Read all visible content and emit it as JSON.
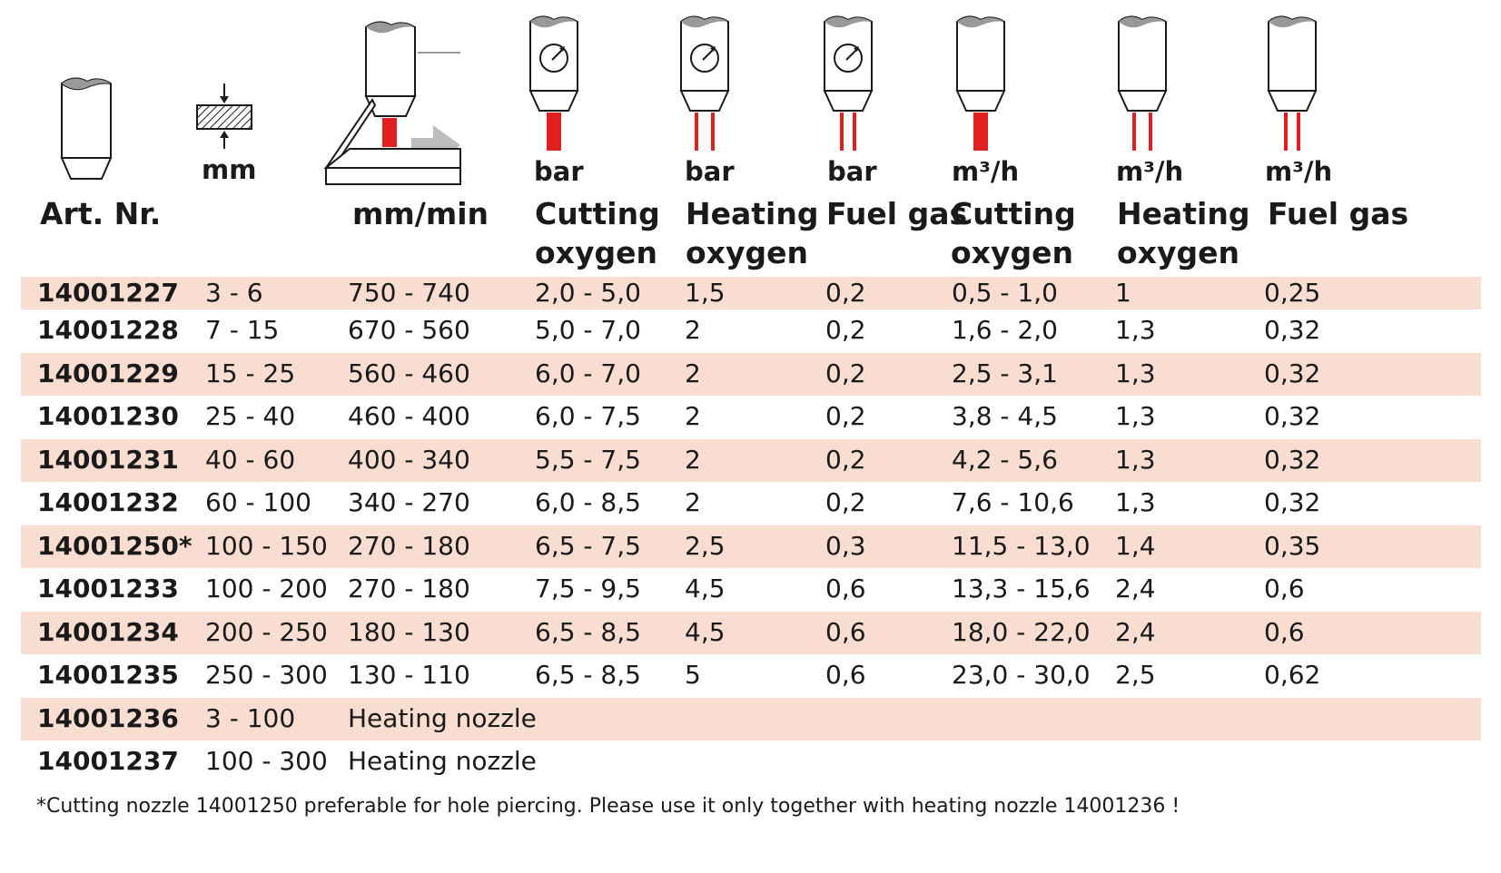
{
  "header": {
    "art_nr": "Art. Nr.",
    "thickness_unit": "mm",
    "speed_unit": "mm/min",
    "col4_unit": "bar",
    "col4_label": [
      "Cutting",
      "oxygen"
    ],
    "col5_unit": "bar",
    "col5_label": [
      "Heating",
      "oxygen"
    ],
    "col6_unit": "bar",
    "col6_label": [
      "Fuel gas"
    ],
    "col7_unit": "m³/h",
    "col7_label": [
      "Cutting",
      "oxygen"
    ],
    "col8_unit": "m³/h",
    "col8_label": [
      "Heating",
      "oxygen"
    ],
    "col9_unit": "m³/h",
    "col9_label": [
      "Fuel gas"
    ]
  },
  "icons": [
    "nozzle-icon",
    "thickness-icon",
    "cutting-machine-icon",
    "gauge-cutting-oxygen-icon",
    "gauge-heating-oxygen-icon",
    "gauge-fuel-gas-icon",
    "flow-cutting-oxygen-icon",
    "flow-heating-oxygen-icon",
    "flow-fuel-gas-icon"
  ],
  "colors": {
    "row_shade": "#f9ddd0",
    "flame_red": "#e0201e"
  },
  "rows": [
    [
      "14001227",
      "3 - 6",
      "750 - 740",
      "2,0 - 5,0",
      "1,5",
      "0,2",
      "0,5 - 1,0",
      "1",
      "0,25"
    ],
    [
      "14001228",
      "7 - 15",
      "670 - 560",
      "5,0 - 7,0",
      "2",
      "0,2",
      "1,6 - 2,0",
      "1,3",
      "0,32"
    ],
    [
      "14001229",
      "15 - 25",
      "560 - 460",
      "6,0 - 7,0",
      "2",
      "0,2",
      "2,5 - 3,1",
      "1,3",
      "0,32"
    ],
    [
      "14001230",
      "25 - 40",
      "460 - 400",
      "6,0 - 7,5",
      "2",
      "0,2",
      "3,8 - 4,5",
      "1,3",
      "0,32"
    ],
    [
      "14001231",
      "40 - 60",
      "400 - 340",
      "5,5 - 7,5",
      "2",
      "0,2",
      "4,2 - 5,6",
      "1,3",
      "0,32"
    ],
    [
      "14001232",
      "60 - 100",
      "340 - 270",
      "6,0 - 8,5",
      "2",
      "0,2",
      "7,6 - 10,6",
      "1,3",
      "0,32"
    ],
    [
      "14001250*",
      "100 - 150",
      "270 - 180",
      "6,5 - 7,5",
      "2,5",
      "0,3",
      "11,5 - 13,0",
      "1,4",
      "0,35"
    ],
    [
      "14001233",
      "100 - 200",
      "270 - 180",
      "7,5 - 9,5",
      "4,5",
      "0,6",
      "13,3 - 15,6",
      "2,4",
      "0,6"
    ],
    [
      "14001234",
      "200 - 250",
      "180 - 130",
      "6,5 - 8,5",
      "4,5",
      "0,6",
      "18,0 - 22,0",
      "2,4",
      "0,6"
    ],
    [
      "14001235",
      "250 - 300",
      "130 - 110",
      "6,5 - 8,5",
      "5",
      "0,6",
      "23,0 - 30,0",
      "2,5",
      "0,62"
    ],
    [
      "14001236",
      "3 - 100",
      "Heating nozzle",
      "",
      "",
      "",
      "",
      "",
      ""
    ],
    [
      "14001237",
      "100 - 300",
      "Heating nozzle",
      "",
      "",
      "",
      "",
      "",
      ""
    ]
  ],
  "footnote": "*Cutting nozzle 14001250 preferable for hole piercing. Please use it only together with heating nozzle 14001236 !"
}
